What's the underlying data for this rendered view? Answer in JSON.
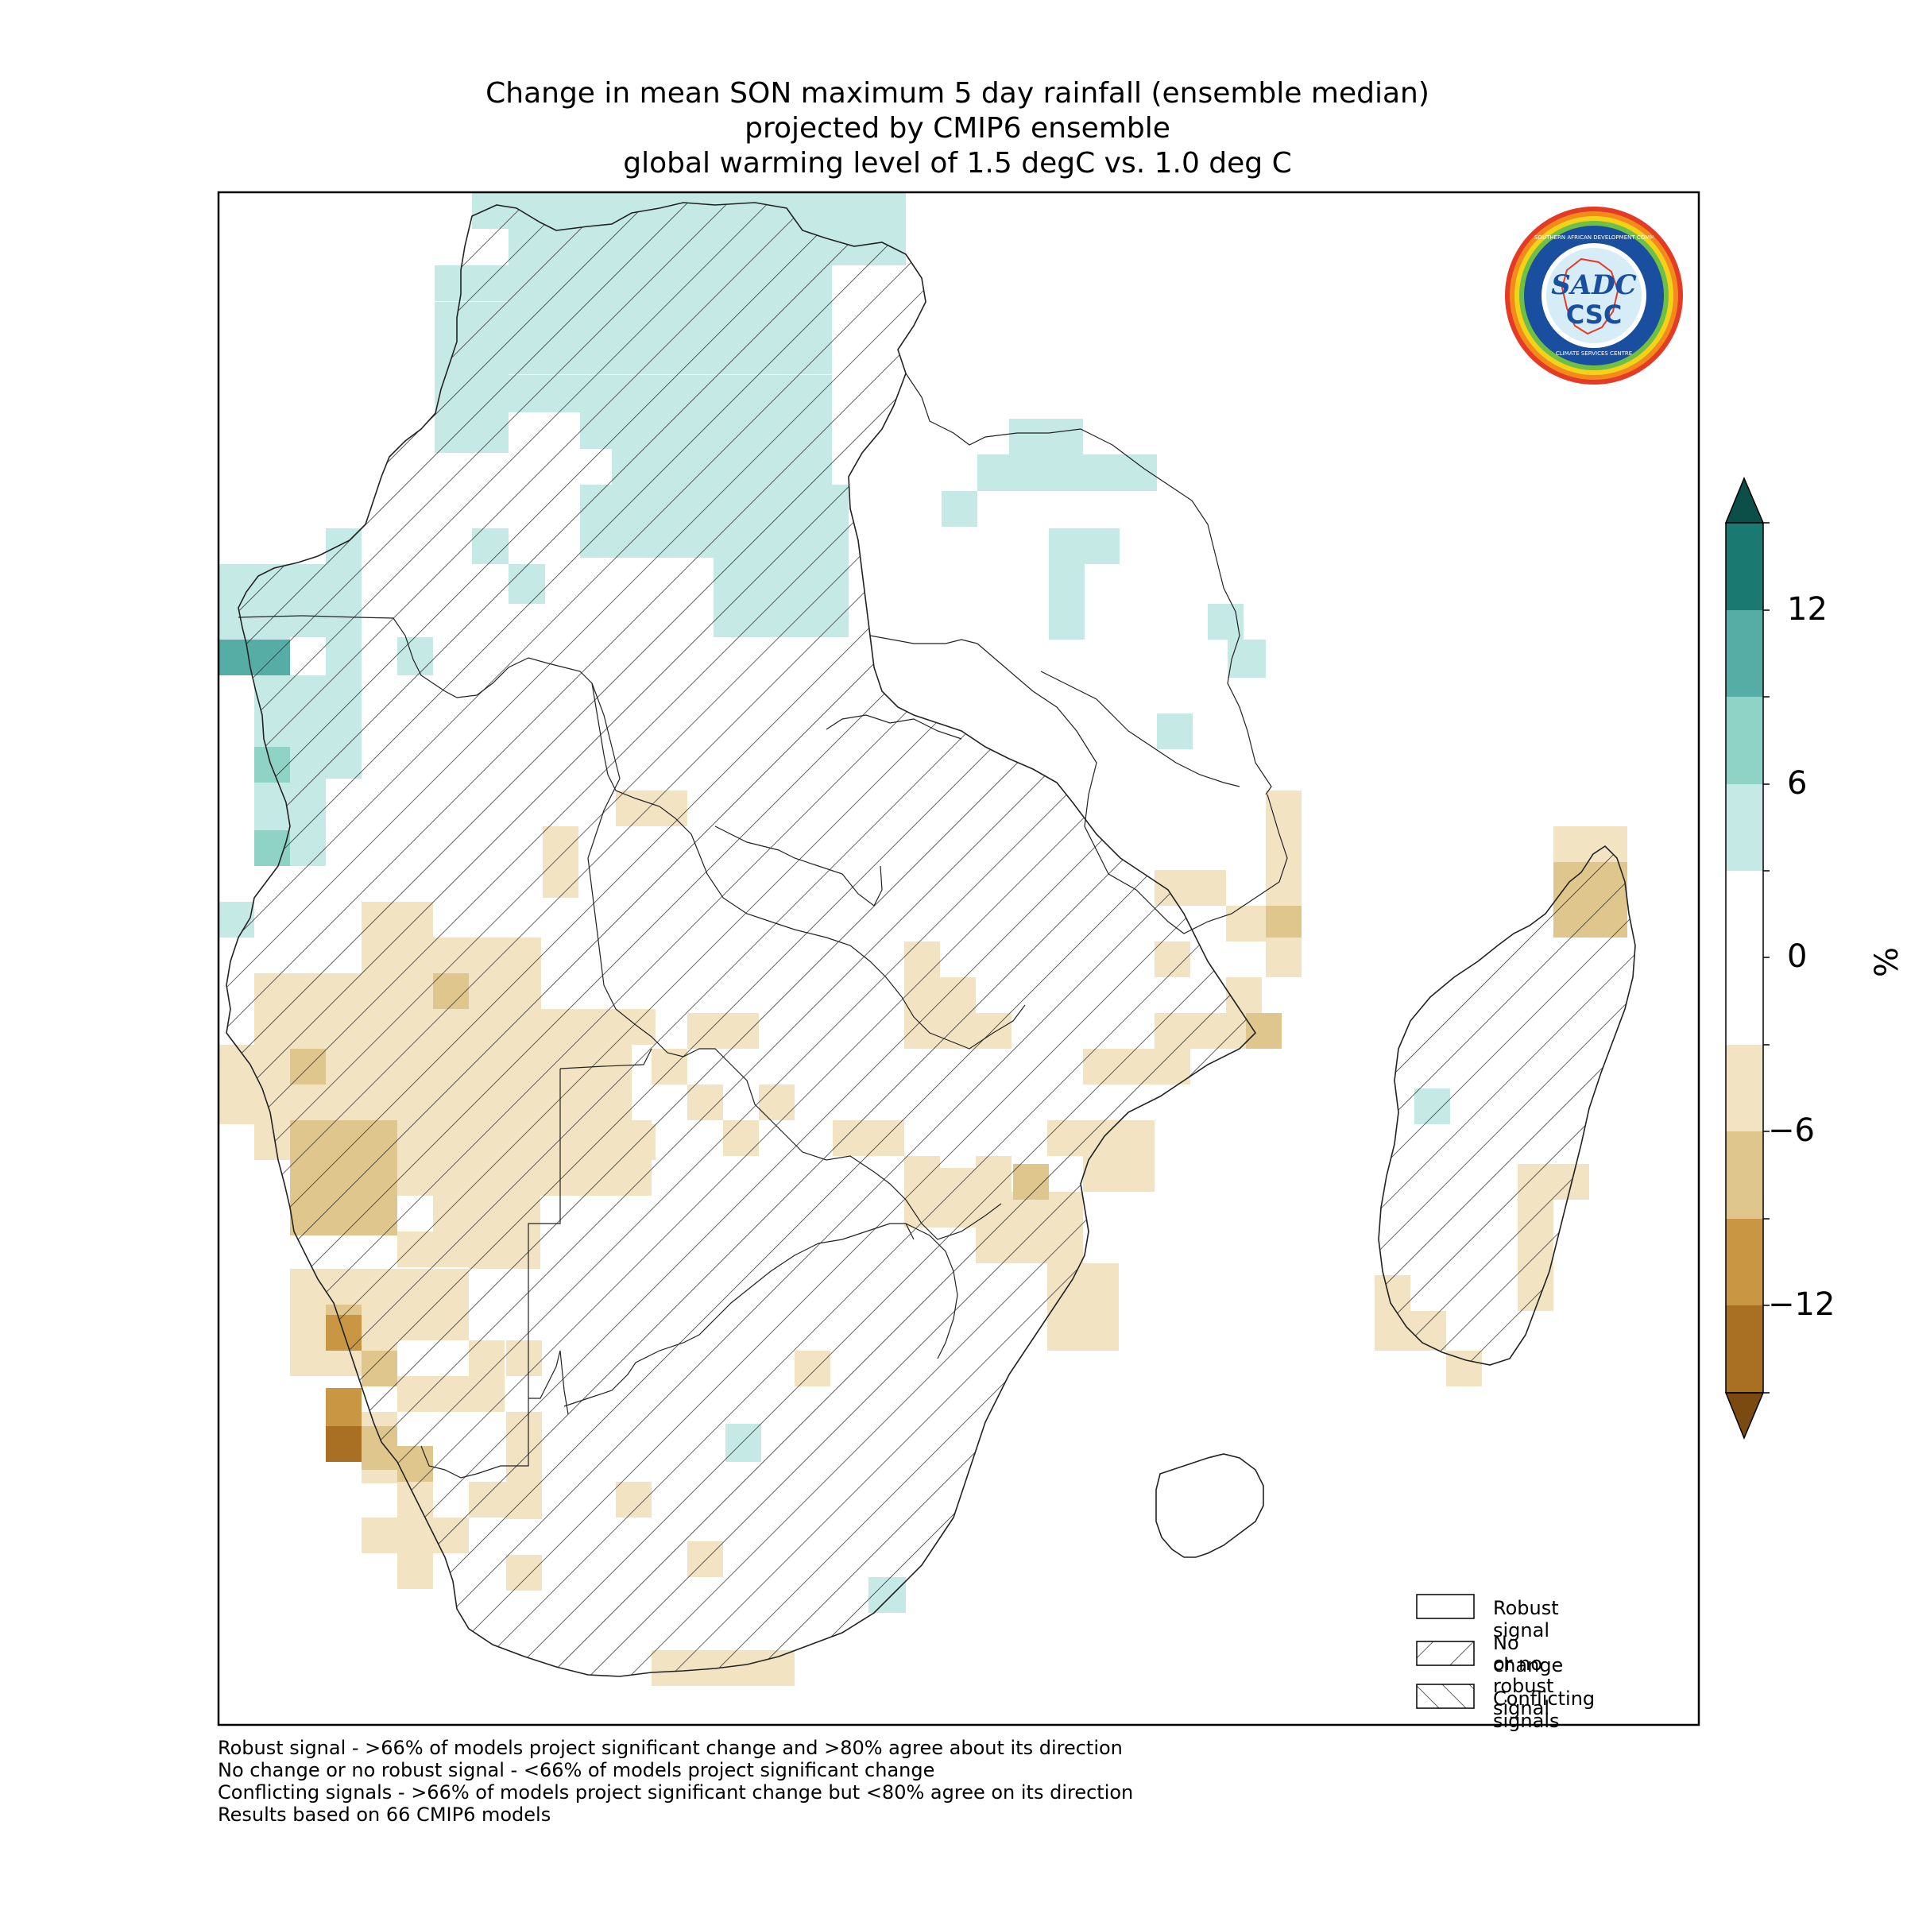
{
  "title": {
    "line1": "Change in mean SON maximum 5 day rainfall (ensemble median)",
    "line2": "projected by CMIP6 ensemble",
    "line3": "global warming level of 1.5 degC vs. 1.0 deg C"
  },
  "colorbar": {
    "unit": "%",
    "ticks": [
      "12",
      "6",
      "0",
      "−6",
      "−12"
    ],
    "colors": [
      "#1a7a72",
      "#55ada5",
      "#8fd2c6",
      "#c5e9e4",
      "#ffffff",
      "#f2e3c2",
      "#dfc68c",
      "#c99743",
      "#a96f22"
    ],
    "extend_top": "#0c4f49",
    "extend_bottom": "#7a4a10"
  },
  "legend": {
    "robust": "Robust signal",
    "no_change_1": "No change",
    "no_change_2": "or no robust signal",
    "conflicting": "Conflicting signals"
  },
  "footnotes": [
    "Robust signal - >66% of models project significant change and >80% agree about its direction",
    "No change or no robust signal - <66% of models project significant change",
    "Conflicting signals - >66% of models project significant change but <80% agree on its direction",
    "Results based on 66 CMIP6 models"
  ],
  "logo": {
    "top_text": "SOUTHERN AFRICAN DEVELOPMENT COMMUNITY",
    "bottom_text": "CLIMATE SERVICES CENTRE",
    "mark": "SADC",
    "sub": "CSC"
  }
}
